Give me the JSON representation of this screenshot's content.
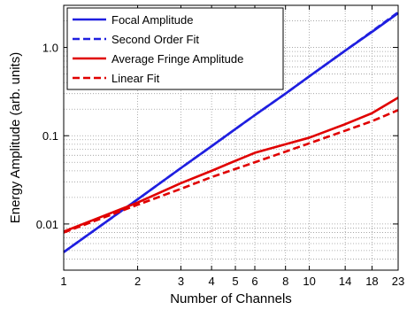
{
  "chart_data": {
    "type": "line",
    "title": "",
    "xlabel": "Number of Channels",
    "ylabel": "Energy Amplitude (arb. units)",
    "xscale": "log",
    "yscale": "log",
    "xlim": [
      1,
      23
    ],
    "ylim": [
      0.003,
      3
    ],
    "grid": true,
    "legend_position": "top-left",
    "x_ticks": [
      1,
      2,
      3,
      4,
      5,
      6,
      8,
      10,
      14,
      18,
      23
    ],
    "x_tick_labels": [
      "1",
      "2",
      "3",
      "4",
      "5",
      "6",
      "8",
      "10",
      "14",
      "18",
      "23"
    ],
    "y_ticks": [
      0.01,
      0.1,
      1.0
    ],
    "y_tick_labels": [
      "0.01",
      "0.1",
      "1.0"
    ],
    "series": [
      {
        "name": "Focal Amplitude",
        "color": "#1f1fe0",
        "style": "solid",
        "x": [
          1,
          2,
          3,
          4,
          5,
          6,
          8,
          10,
          14,
          18,
          23
        ],
        "y": [
          0.0048,
          0.019,
          0.043,
          0.076,
          0.119,
          0.171,
          0.3,
          0.47,
          0.92,
          1.5,
          2.45
        ]
      },
      {
        "name": "Second Order Fit",
        "color": "#1f1fe0",
        "style": "dashed",
        "x": [
          1,
          2,
          3,
          4,
          5,
          6,
          8,
          10,
          14,
          18,
          23
        ],
        "y": [
          0.0048,
          0.019,
          0.043,
          0.076,
          0.119,
          0.171,
          0.3,
          0.47,
          0.92,
          1.52,
          2.5
        ]
      },
      {
        "name": "Average Fringe Amplitude",
        "color": "#e00000",
        "style": "solid",
        "x": [
          1,
          2,
          3,
          4,
          5,
          6,
          8,
          10,
          14,
          18,
          23
        ],
        "y": [
          0.0082,
          0.0175,
          0.029,
          0.04,
          0.052,
          0.064,
          0.08,
          0.095,
          0.135,
          0.18,
          0.27
        ]
      },
      {
        "name": "Linear Fit",
        "color": "#e00000",
        "style": "dashed",
        "x": [
          1,
          2,
          3,
          4,
          5,
          6,
          8,
          10,
          14,
          18,
          23
        ],
        "y": [
          0.008,
          0.0165,
          0.025,
          0.034,
          0.042,
          0.05,
          0.066,
          0.082,
          0.114,
          0.146,
          0.195
        ]
      }
    ]
  }
}
